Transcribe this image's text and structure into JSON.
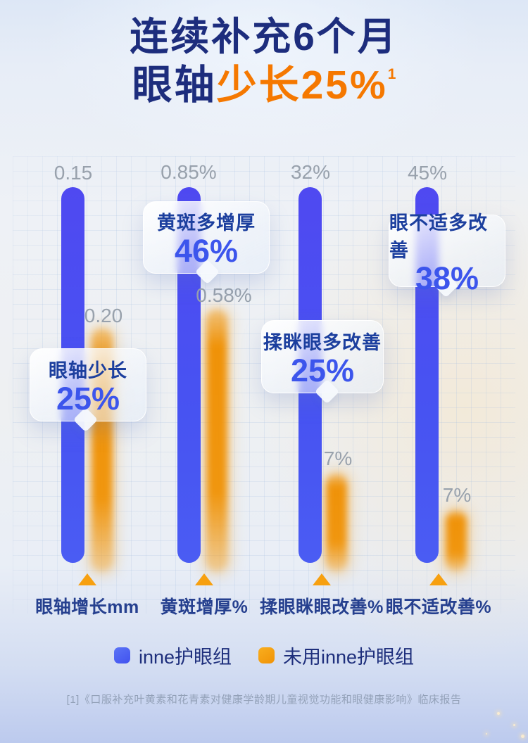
{
  "title": {
    "line1": "连续补充6个月",
    "line2_prefix": "眼轴",
    "line2_highlight": "少长25%",
    "superscript": "1"
  },
  "chart_data": {
    "type": "bar",
    "categories": [
      "眼轴增长mm",
      "黄斑增厚%",
      "揉眼眯眼改善%",
      "眼不适改善%"
    ],
    "series": [
      {
        "name": "inne护眼组",
        "color": "#4a55f2",
        "values": [
          "0.15",
          "0.85%",
          "32%",
          "45%"
        ]
      },
      {
        "name": "未用inne护眼组",
        "color": "#f0960f",
        "values": [
          "0.20",
          "0.58%",
          "7%",
          "7%"
        ]
      }
    ],
    "callouts": [
      {
        "label": "眼轴少长",
        "value": "25%"
      },
      {
        "label": "黄斑多增厚",
        "value": "46%"
      },
      {
        "label": "揉眯眼多改善",
        "value": "25%"
      },
      {
        "label": "眼不适多改善",
        "value": "38%"
      }
    ],
    "layout": {
      "legend_position": "bottom",
      "grid": "faint",
      "bar_direction": "hanging-top"
    },
    "colors": {
      "blue_bar": "#4a55f2",
      "orange_bar": "#f0960f",
      "value_label": "#98a1ac",
      "callout_value": "#3c55ec",
      "callout_label": "#1c3f9e",
      "title_navy": "#1d2d7d",
      "title_orange": "#f57800"
    }
  },
  "legend": [
    {
      "label": "inne护眼组",
      "color": "#4a62f3"
    },
    {
      "label": "未用inne护眼组",
      "color": "#f7a010"
    }
  ],
  "footnote": "[1]《口服补充叶黄素和花青素对健康学龄期儿童视觉功能和眼健康影响》临床报告"
}
